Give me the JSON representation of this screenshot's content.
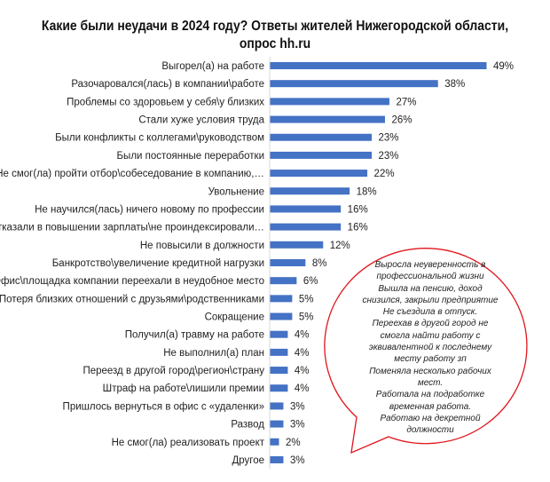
{
  "chart_data": {
    "type": "bar",
    "orientation": "horizontal",
    "title": "Какие были неудачи в 2024 году? Ответы жителей Нижегородской области, опрос hh.ru",
    "categories": [
      "Выгорел(а) на работе",
      "Разочаровался(лась) в компании\\работе",
      "Проблемы со здоровьем у себя\\у близких",
      "Стали хуже условия труда",
      "Были конфликты с коллегами\\руководством",
      "Были постоянные переработки",
      "Не смог(ла) пройти отбор\\собеседование в компанию,…",
      "Увольнение",
      "Не научился(лась) ничего новому по профессии",
      "Отказали в повышении зарплаты\\не проиндексировали…",
      "Не повысили в должности",
      "Банкротство\\увеличение кредитной нагрузки",
      "Офис\\площадка компании переехали в неудобное место",
      "Потеря близких отношений с друзьями\\родственниками",
      "Сокращение",
      "Получил(а) травму на работе",
      "Не выполнил(а) план",
      "Переезд в другой город\\регион\\страну",
      "Штраф на работе\\лишили премии",
      "Пришлось вернуться в офис с «удаленки»",
      "Развод",
      "Не смог(ла) реализовать проект",
      "Другое"
    ],
    "values": [
      49,
      38,
      27,
      26,
      23,
      23,
      22,
      18,
      16,
      16,
      12,
      8,
      6,
      5,
      5,
      4,
      4,
      4,
      4,
      3,
      3,
      2,
      3
    ],
    "labels": [
      "49%",
      "38%",
      "27%",
      "26%",
      "23%",
      "23%",
      "22%",
      "18%",
      "16%",
      "16%",
      "12%",
      "8%",
      "6%",
      "5%",
      "5%",
      "4%",
      "4%",
      "4%",
      "4%",
      "3%",
      "3%",
      "2%",
      "3%"
    ],
    "bar_color": "#4472C4",
    "xlim": [
      0,
      60
    ],
    "grid": false,
    "annotation": {
      "lines": [
        "Выросла неуверенность в",
        "профессиональной жизни",
        "Вышла на пенсию, доход",
        "снизился, закрыли предприятие",
        "Не съездила в отпуск.",
        "Переехав в другой город не",
        "смогла найти работу с",
        "эквивалентной к последнему",
        "месту работу зп",
        "Поменяла несколько рабочих",
        "мест.",
        "Работала на подработке",
        "временная работа.",
        "Работаю на декретной",
        "должности"
      ],
      "border_color": "#E0161B"
    }
  }
}
